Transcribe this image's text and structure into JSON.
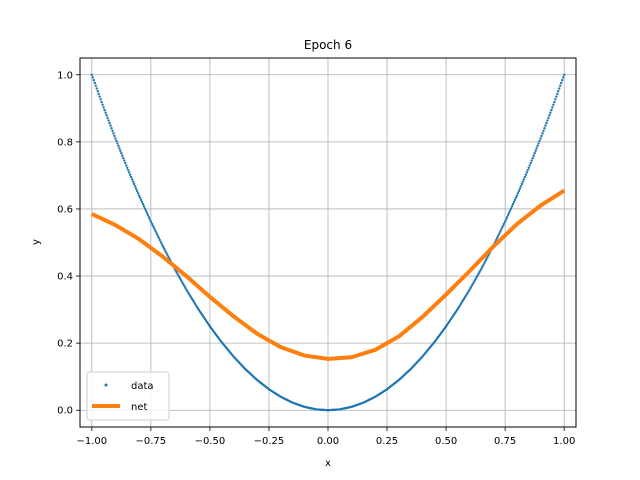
{
  "chart_data": {
    "type": "line",
    "title": "Epoch 6",
    "xlabel": "x",
    "ylabel": "y",
    "xlim": [
      -1.05,
      1.05
    ],
    "ylim": [
      -0.05,
      1.05
    ],
    "xticks": [
      -1.0,
      -0.75,
      -0.5,
      -0.25,
      0.0,
      0.25,
      0.5,
      0.75,
      1.0
    ],
    "xtick_labels": [
      "−1.00",
      "−0.75",
      "−0.50",
      "−0.25",
      "0.00",
      "0.25",
      "0.50",
      "0.75",
      "1.00"
    ],
    "yticks": [
      0.0,
      0.2,
      0.4,
      0.6,
      0.8,
      1.0
    ],
    "ytick_labels": [
      "0.0",
      "0.2",
      "0.4",
      "0.6",
      "0.8",
      "1.0"
    ],
    "grid": true,
    "legend_position": "lower-left",
    "series": [
      {
        "name": "data",
        "style": "points",
        "color": "#1f77b4",
        "x": [
          -1.0,
          -0.95,
          -0.9,
          -0.85,
          -0.8,
          -0.75,
          -0.7,
          -0.65,
          -0.6,
          -0.55,
          -0.5,
          -0.45,
          -0.4,
          -0.35,
          -0.3,
          -0.25,
          -0.2,
          -0.15,
          -0.1,
          -0.05,
          0.0,
          0.05,
          0.1,
          0.15,
          0.2,
          0.25,
          0.3,
          0.35,
          0.4,
          0.45,
          0.5,
          0.55,
          0.6,
          0.65,
          0.7,
          0.75,
          0.8,
          0.85,
          0.9,
          0.95,
          1.0
        ],
        "y": [
          1.0,
          0.9025,
          0.81,
          0.7225,
          0.64,
          0.5625,
          0.49,
          0.4225,
          0.36,
          0.3025,
          0.25,
          0.2025,
          0.16,
          0.1225,
          0.09,
          0.0625,
          0.04,
          0.0225,
          0.01,
          0.0025,
          0.0,
          0.0025,
          0.01,
          0.0225,
          0.04,
          0.0625,
          0.09,
          0.1225,
          0.16,
          0.2025,
          0.25,
          0.3025,
          0.36,
          0.4225,
          0.49,
          0.5625,
          0.64,
          0.7225,
          0.81,
          0.9025,
          1.0
        ]
      },
      {
        "name": "net",
        "style": "line",
        "color": "#ff7f0e",
        "x": [
          -1.0,
          -0.9,
          -0.8,
          -0.7,
          -0.6,
          -0.5,
          -0.4,
          -0.3,
          -0.2,
          -0.1,
          0.0,
          0.1,
          0.2,
          0.3,
          0.4,
          0.5,
          0.6,
          0.7,
          0.8,
          0.9,
          1.0
        ],
        "y": [
          0.585,
          0.552,
          0.51,
          0.458,
          0.4,
          0.338,
          0.28,
          0.228,
          0.188,
          0.163,
          0.153,
          0.158,
          0.18,
          0.22,
          0.278,
          0.345,
          0.415,
          0.488,
          0.555,
          0.61,
          0.655
        ]
      }
    ]
  }
}
